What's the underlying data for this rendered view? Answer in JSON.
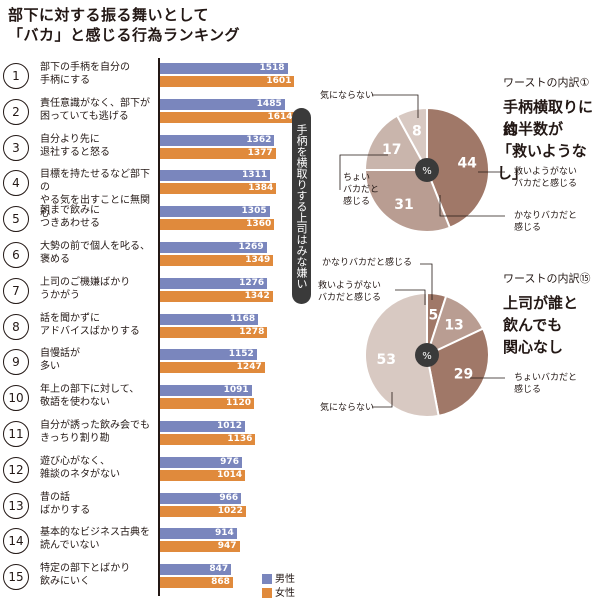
{
  "title_lines": [
    "部下に対する振る舞いとして",
    "「バカ」と感じる行為ランキング"
  ],
  "chart_data": [
    {
      "type": "bar",
      "categories": [
        {
          "rank": "1",
          "lines": [
            "部下の手柄を自分の",
            "手柄にする"
          ]
        },
        {
          "rank": "2",
          "lines": [
            "責任意識がなく、部下が",
            "困っていても逃げる"
          ]
        },
        {
          "rank": "3",
          "lines": [
            "自分より先に",
            "退社すると怒る"
          ]
        },
        {
          "rank": "4",
          "lines": [
            "目標を持たせるなど部下の",
            "やる気を出すことに無関心"
          ]
        },
        {
          "rank": "5",
          "lines": [
            "朝まで飲みに",
            "つきあわせる"
          ]
        },
        {
          "rank": "6",
          "lines": [
            "大勢の前で個人を叱る、",
            "褒める"
          ]
        },
        {
          "rank": "7",
          "lines": [
            "上司のご機嫌ばかり",
            "うかがう"
          ]
        },
        {
          "rank": "8",
          "lines": [
            "話を聞かずに",
            "アドバイスばかりする"
          ]
        },
        {
          "rank": "9",
          "lines": [
            "自慢話が",
            "多い"
          ]
        },
        {
          "rank": "10",
          "lines": [
            "年上の部下に対して、",
            "敬語を使わない"
          ]
        },
        {
          "rank": "11",
          "lines": [
            "自分が誘った飲み会でも",
            "きっちり割り勘"
          ]
        },
        {
          "rank": "12",
          "lines": [
            "遊び心がなく、",
            "雑談のネタがない"
          ]
        },
        {
          "rank": "13",
          "lines": [
            "昔の話",
            "ばかりする"
          ]
        },
        {
          "rank": "14",
          "lines": [
            "基本的なビジネス古典を",
            "読んでいない"
          ]
        },
        {
          "rank": "15",
          "lines": [
            "特定の部下とばかり",
            "飲みにいく"
          ]
        }
      ],
      "series": [
        {
          "name": "男性",
          "color": "#7a86bd",
          "values": [
            1518,
            1485,
            1362,
            1311,
            1305,
            1269,
            1276,
            1168,
            1152,
            1091,
            1012,
            976,
            966,
            914,
            847
          ]
        },
        {
          "name": "女性",
          "color": "#e08a3c",
          "values": [
            1601,
            1614,
            1377,
            1384,
            1360,
            1349,
            1342,
            1278,
            1247,
            1120,
            1136,
            1014,
            1022,
            947,
            868
          ]
        }
      ],
      "annotation": "手柄を横取りする上司はみな嫌い"
    },
    {
      "type": "pie",
      "title": "ワーストの内訳①",
      "headline": [
        "手柄横取りには",
        "約半数が",
        "「救いようなし」"
      ],
      "center_label": "%",
      "slices": [
        {
          "label": [
            "救いようがない",
            "バカだと感じる"
          ],
          "value": 44,
          "color": "#a07868"
        },
        {
          "label": [
            "かなりバカだと",
            "感じる"
          ],
          "value": 31,
          "color": "#b99d92"
        },
        {
          "label": [
            "ちょい",
            "バカだと",
            "感じる"
          ],
          "value": 17,
          "color": "#c9b5ac"
        },
        {
          "label": [
            "気にならない"
          ],
          "value": 8,
          "color": "#d8c9c2"
        }
      ]
    },
    {
      "type": "pie",
      "title": "ワーストの内訳⑮",
      "headline": [
        "上司が誰と",
        "飲んでも",
        "関心なし"
      ],
      "center_label": "%",
      "slices": [
        {
          "label": [
            "救いようがない",
            "バカだと感じる"
          ],
          "value": 5,
          "color": "#a07868"
        },
        {
          "label": [
            "かなりバカだと感じる"
          ],
          "value": 13,
          "color": "#b99d92"
        },
        {
          "label": [
            "ちょいバカだと",
            "感じる"
          ],
          "value": 29,
          "color": "#a07868"
        },
        {
          "label": [
            "気にならない"
          ],
          "value": 53,
          "color": "#d8c9c2"
        }
      ]
    }
  ]
}
